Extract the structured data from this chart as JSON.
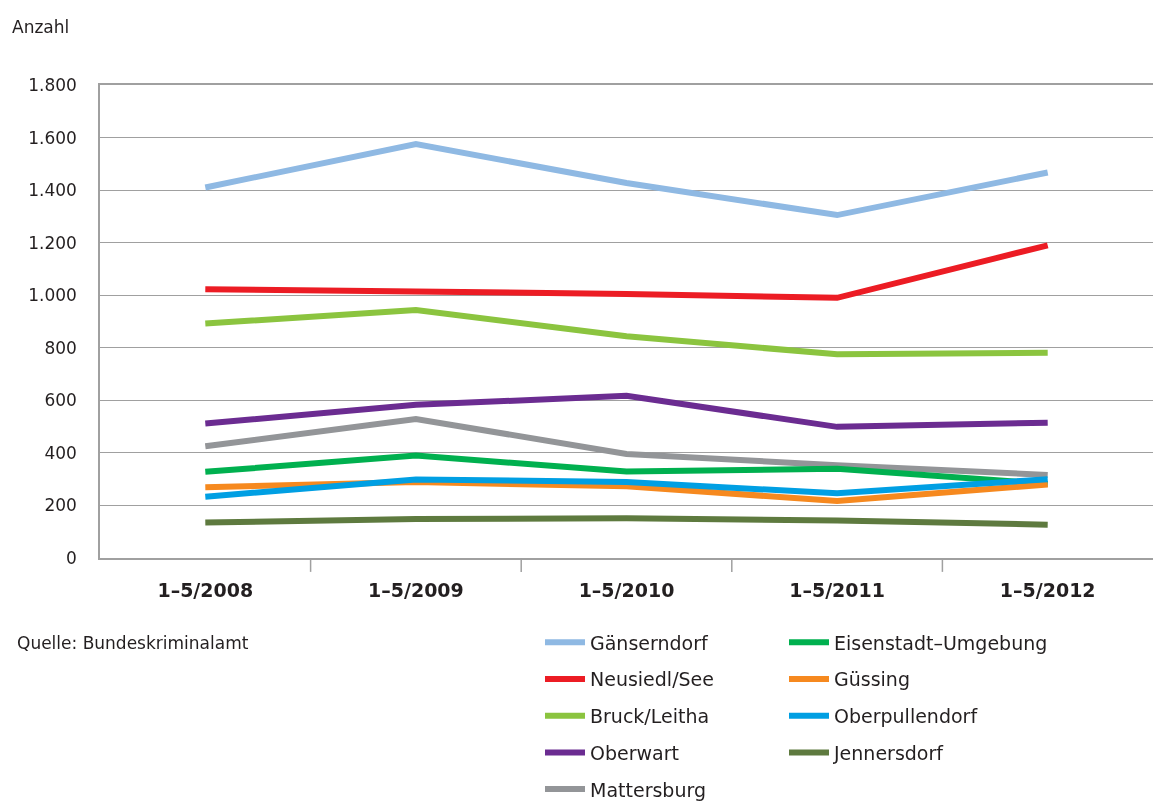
{
  "chart_data": {
    "type": "line",
    "ylabel": "Anzahl",
    "annotations": [
      "Quelle: Bundeskriminalamt"
    ],
    "categories": [
      "1–5/2008",
      "1–5/2009",
      "1–5/2010",
      "1–5/2011",
      "1–5/2012"
    ],
    "ylim": [
      0,
      1800
    ],
    "yticks": [
      0,
      200,
      400,
      600,
      800,
      {
        "value": 1000,
        "label": "1.000"
      },
      {
        "value": 1200,
        "label": "1.200"
      },
      {
        "value": 1400,
        "label": "1.400"
      },
      {
        "value": 1600,
        "label": "1.600"
      },
      {
        "value": 1800,
        "label": "1.800"
      }
    ],
    "grid": "y",
    "legend": "bottom",
    "marker": "none",
    "line_style": "solid",
    "series": [
      {
        "name": "Gänserndorf",
        "color": "#8fb9e3",
        "values": [
          1410,
          1575,
          1427,
          1305,
          1467
        ]
      },
      {
        "name": "Neusiedl/See",
        "color": "#ec1c24",
        "values": [
          1023,
          1014,
          1005,
          990,
          1190
        ]
      },
      {
        "name": "Bruck/Leitha",
        "color": "#8bc43f",
        "values": [
          892,
          944,
          844,
          775,
          781
        ]
      },
      {
        "name": "Oberwart",
        "color": "#6b2c91",
        "values": [
          512,
          583,
          617,
          499,
          515
        ]
      },
      {
        "name": "Mattersburg",
        "color": "#939598",
        "values": [
          425,
          529,
          396,
          353,
          316
        ]
      },
      {
        "name": "Eisenstadt–Umgebung",
        "color": "#00b04f",
        "values": [
          328,
          390,
          329,
          340,
          282
        ]
      },
      {
        "name": "Güssing",
        "color": "#f6891f",
        "values": [
          269,
          289,
          273,
          217,
          280
        ]
      },
      {
        "name": "Oberpullendorf",
        "color": "#009fe3",
        "values": [
          233,
          299,
          289,
          246,
          300
        ]
      },
      {
        "name": "Jennersdorf",
        "color": "#5e7a3f",
        "values": [
          135,
          148,
          151,
          143,
          127
        ]
      }
    ]
  }
}
